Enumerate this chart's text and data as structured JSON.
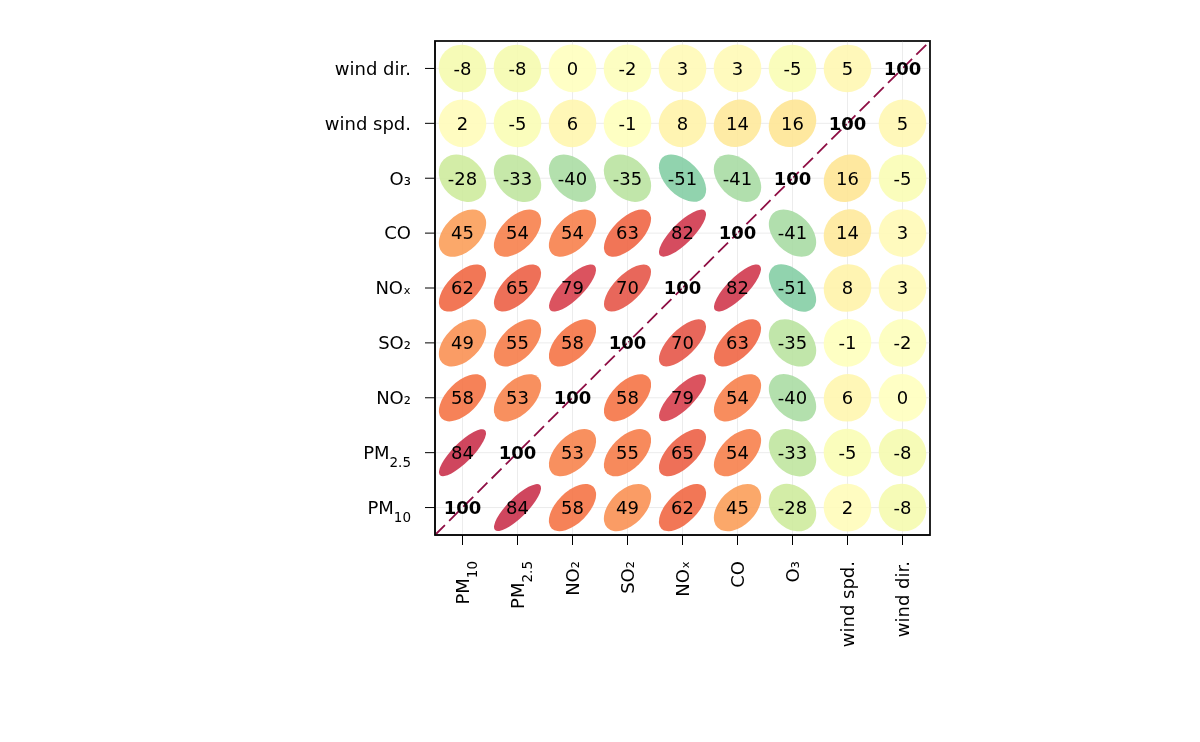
{
  "chart_data": {
    "type": "heatmap",
    "categories": [
      "PM$_{10}$",
      "PM$_{2.5}$",
      "NO₂",
      "SO₂",
      "NOₓ",
      "CO",
      "O₃",
      "wind spd.",
      "wind dir."
    ],
    "y_categories": [
      "wind dir.",
      "wind spd.",
      "O₃",
      "CO",
      "NOₓ",
      "SO₂",
      "NO₂",
      "PM$_{2.5}$",
      "PM$_{10}$"
    ],
    "cells": [
      [
        -8,
        -8,
        0,
        -2,
        3,
        3,
        -5,
        5,
        100
      ],
      [
        2,
        -5,
        6,
        -1,
        8,
        14,
        16,
        100,
        5
      ],
      [
        -28,
        -33,
        -40,
        -35,
        -51,
        -41,
        100,
        16,
        -5
      ],
      [
        45,
        54,
        54,
        63,
        82,
        100,
        -41,
        14,
        3
      ],
      [
        62,
        65,
        79,
        70,
        100,
        82,
        -51,
        8,
        3
      ],
      [
        49,
        55,
        58,
        100,
        70,
        63,
        -35,
        -1,
        -2
      ],
      [
        58,
        53,
        100,
        58,
        79,
        54,
        -40,
        6,
        0
      ],
      [
        84,
        100,
        53,
        55,
        65,
        54,
        -33,
        -5,
        -8
      ],
      [
        100,
        84,
        58,
        49,
        62,
        45,
        -28,
        2,
        -8
      ]
    ],
    "data_labels": true,
    "grid": true
  }
}
